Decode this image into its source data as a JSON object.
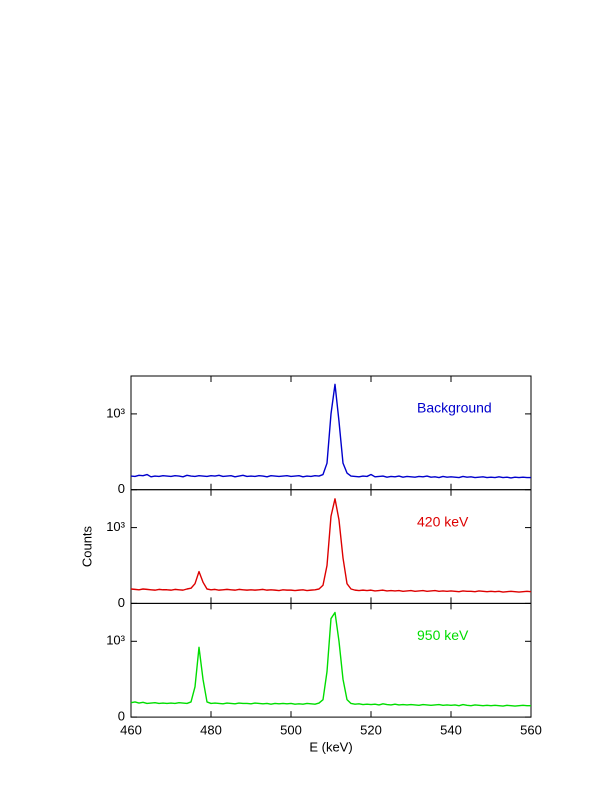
{
  "chart_data": [
    {
      "type": "line",
      "xlim": [
        460,
        560
      ],
      "xticks": [
        460,
        480,
        500,
        520,
        540,
        560
      ],
      "ylim": [
        0,
        1500
      ],
      "yticks": [
        0,
        {
          "value": 1000,
          "label": "10³"
        }
      ],
      "x": [
        460,
        461,
        462,
        463,
        464,
        465,
        466,
        467,
        468,
        469,
        470,
        471,
        472,
        473,
        474,
        475,
        476,
        477,
        478,
        479,
        480,
        481,
        482,
        483,
        484,
        485,
        486,
        487,
        488,
        489,
        490,
        491,
        492,
        493,
        494,
        495,
        496,
        497,
        498,
        499,
        500,
        501,
        502,
        503,
        504,
        505,
        506,
        507,
        508,
        509,
        510,
        511,
        512,
        513,
        514,
        515,
        516,
        517,
        518,
        519,
        520,
        521,
        522,
        523,
        524,
        525,
        526,
        527,
        528,
        529,
        530,
        531,
        532,
        533,
        534,
        535,
        536,
        537,
        538,
        539,
        540,
        541,
        542,
        543,
        544,
        545,
        546,
        547,
        548,
        549,
        550,
        551,
        552,
        553,
        554,
        555,
        556,
        557,
        558,
        559,
        560
      ],
      "series": [
        {
          "name": "Background",
          "color": "#0000cc",
          "values": [
            180,
            175,
            190,
            185,
            200,
            170,
            180,
            175,
            185,
            180,
            175,
            185,
            180,
            170,
            190,
            180,
            175,
            185,
            180,
            175,
            185,
            180,
            190,
            175,
            180,
            185,
            170,
            180,
            190,
            175,
            180,
            175,
            185,
            180,
            170,
            185,
            180,
            175,
            180,
            185,
            175,
            180,
            185,
            170,
            180,
            175,
            185,
            180,
            200,
            350,
            1000,
            1390,
            900,
            350,
            220,
            180,
            175,
            170,
            180,
            175,
            200,
            170,
            175,
            180,
            165,
            175,
            170,
            180,
            165,
            175,
            170,
            165,
            175,
            170,
            180,
            165,
            170,
            160,
            175,
            165,
            170,
            165,
            160,
            175,
            165,
            170,
            160,
            165,
            170,
            160,
            165,
            160,
            170,
            160,
            165,
            155,
            165,
            160,
            165,
            160,
            160
          ]
        }
      ]
    },
    {
      "type": "line",
      "xlim": [
        460,
        560
      ],
      "xticks": [
        460,
        480,
        500,
        520,
        540,
        560
      ],
      "ylim": [
        0,
        1500
      ],
      "yticks": [
        0,
        {
          "value": 1000,
          "label": "10³"
        }
      ],
      "ylabel": "Counts",
      "x": [
        460,
        461,
        462,
        463,
        464,
        465,
        466,
        467,
        468,
        469,
        470,
        471,
        472,
        473,
        474,
        475,
        476,
        477,
        478,
        479,
        480,
        481,
        482,
        483,
        484,
        485,
        486,
        487,
        488,
        489,
        490,
        491,
        492,
        493,
        494,
        495,
        496,
        497,
        498,
        499,
        500,
        501,
        502,
        503,
        504,
        505,
        506,
        507,
        508,
        509,
        510,
        511,
        512,
        513,
        514,
        515,
        516,
        517,
        518,
        519,
        520,
        521,
        522,
        523,
        524,
        525,
        526,
        527,
        528,
        529,
        530,
        531,
        532,
        533,
        534,
        535,
        536,
        537,
        538,
        539,
        540,
        541,
        542,
        543,
        544,
        545,
        546,
        547,
        548,
        549,
        550,
        551,
        552,
        553,
        554,
        555,
        556,
        557,
        558,
        559,
        560
      ],
      "series": [
        {
          "name": "420 keV",
          "color": "#dd0000",
          "values": [
            190,
            185,
            180,
            190,
            185,
            180,
            175,
            185,
            180,
            180,
            175,
            185,
            180,
            175,
            190,
            200,
            260,
            420,
            280,
            190,
            180,
            185,
            175,
            180,
            185,
            180,
            175,
            185,
            180,
            175,
            180,
            175,
            180,
            185,
            175,
            180,
            175,
            170,
            180,
            175,
            175,
            170,
            175,
            180,
            170,
            175,
            180,
            190,
            240,
            500,
            1150,
            1380,
            1100,
            600,
            260,
            190,
            175,
            170,
            175,
            170,
            175,
            165,
            170,
            175,
            165,
            170,
            165,
            170,
            160,
            165,
            170,
            160,
            165,
            170,
            160,
            165,
            170,
            160,
            165,
            160,
            165,
            160,
            155,
            165,
            160,
            160,
            155,
            165,
            160,
            155,
            160,
            155,
            160,
            150,
            155,
            160,
            155,
            150,
            155,
            160,
            155
          ]
        }
      ]
    },
    {
      "type": "line",
      "xlim": [
        460,
        560
      ],
      "xticks": [
        460,
        480,
        500,
        520,
        540,
        560
      ],
      "ylim": [
        0,
        1500
      ],
      "yticks": [
        0,
        {
          "value": 1000,
          "label": "10³"
        }
      ],
      "xlabel": "E (keV)",
      "x": [
        460,
        461,
        462,
        463,
        464,
        465,
        466,
        467,
        468,
        469,
        470,
        471,
        472,
        473,
        474,
        475,
        476,
        477,
        478,
        479,
        480,
        481,
        482,
        483,
        484,
        485,
        486,
        487,
        488,
        489,
        490,
        491,
        492,
        493,
        494,
        495,
        496,
        497,
        498,
        499,
        500,
        501,
        502,
        503,
        504,
        505,
        506,
        507,
        508,
        509,
        510,
        511,
        512,
        513,
        514,
        515,
        516,
        517,
        518,
        519,
        520,
        521,
        522,
        523,
        524,
        525,
        526,
        527,
        528,
        529,
        530,
        531,
        532,
        533,
        534,
        535,
        536,
        537,
        538,
        539,
        540,
        541,
        542,
        543,
        544,
        545,
        546,
        547,
        548,
        549,
        550,
        551,
        552,
        553,
        554,
        555,
        556,
        557,
        558,
        559,
        560
      ],
      "series": [
        {
          "name": "950 keV",
          "color": "#00dd00",
          "values": [
            190,
            200,
            185,
            195,
            180,
            185,
            190,
            180,
            185,
            180,
            185,
            180,
            190,
            185,
            180,
            200,
            400,
            920,
            500,
            200,
            180,
            185,
            180,
            175,
            185,
            180,
            175,
            185,
            180,
            180,
            175,
            185,
            180,
            175,
            180,
            170,
            180,
            175,
            180,
            175,
            180,
            170,
            175,
            170,
            180,
            175,
            170,
            185,
            230,
            600,
            1300,
            1380,
            1000,
            500,
            230,
            180,
            170,
            175,
            165,
            170,
            165,
            170,
            160,
            175,
            165,
            160,
            170,
            160,
            165,
            160,
            165,
            160,
            155,
            165,
            160,
            155,
            160,
            165,
            155,
            160,
            155,
            160,
            150,
            165,
            155,
            150,
            160,
            155,
            150,
            155,
            150,
            155,
            150,
            145,
            155,
            150,
            145,
            150,
            155,
            150,
            150
          ]
        }
      ]
    }
  ]
}
